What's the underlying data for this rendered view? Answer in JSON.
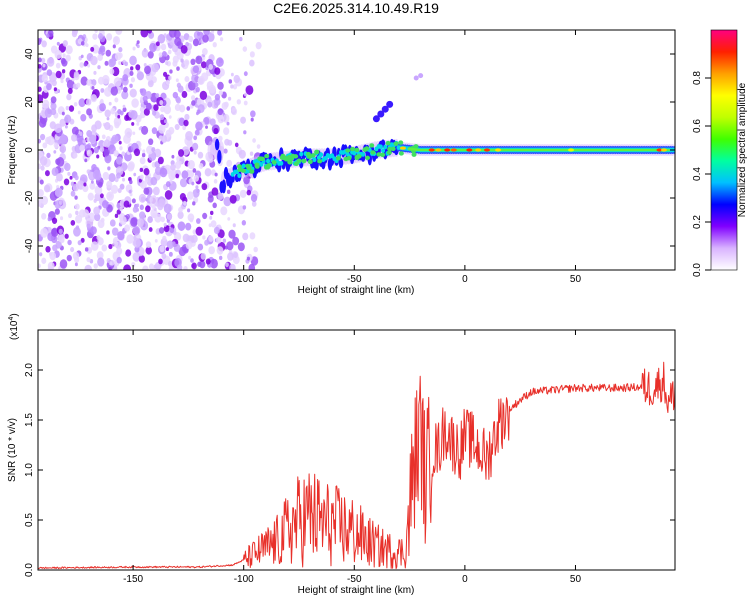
{
  "chart_data": [
    {
      "type": "heatmap",
      "title": "C2E6.2025.314.10.49.R19",
      "xlabel": "Height of straight line (km)",
      "ylabel": "Frequency (Hz)",
      "xlim": [
        -193,
        95
      ],
      "ylim": [
        -50,
        50
      ],
      "xticks": [
        -150,
        -100,
        -50,
        0,
        50
      ],
      "xtick_labels": [
        "-150",
        "-100",
        "-50",
        "0",
        "50"
      ],
      "yticks": [
        -40,
        -20,
        0,
        20,
        40
      ],
      "ytick_labels": [
        "-40",
        "-20",
        "0",
        "20",
        "40"
      ],
      "colorbar": {
        "label": "Normalized spectral amplitude",
        "range": [
          0.0,
          1.0
        ],
        "ticks": [
          0.0,
          0.2,
          0.4,
          0.6,
          0.8
        ],
        "tick_labels": [
          "0.0",
          "0.2",
          "0.4",
          "0.6",
          "0.8"
        ],
        "colors": [
          "#ffffff",
          "#d9b3ff",
          "#8000ff",
          "#0000ff",
          "#00c0ff",
          "#00ffa0",
          "#40ff00",
          "#c0ff00",
          "#ffff00",
          "#ffa000",
          "#ff2000",
          "#ff0080"
        ]
      },
      "signal_track": [
        {
          "x": -110,
          "y": -13
        },
        {
          "x": -100,
          "y": -8
        },
        {
          "x": -90,
          "y": -5
        },
        {
          "x": -80,
          "y": -4
        },
        {
          "x": -70,
          "y": -3
        },
        {
          "x": -60,
          "y": -3
        },
        {
          "x": -50,
          "y": -2
        },
        {
          "x": -40,
          "y": 0
        },
        {
          "x": -30,
          "y": 1
        },
        {
          "x": -20,
          "y": 0
        },
        {
          "x": 0,
          "y": 0
        },
        {
          "x": 50,
          "y": 0
        },
        {
          "x": 95,
          "y": 0
        }
      ],
      "noise_region_x": [
        -193,
        -105
      ],
      "accent_color": "#7b00e0"
    },
    {
      "type": "line",
      "xlabel": "Height of straight line (km)",
      "ylabel": "SNR (10 * v/v)",
      "y_multiplier": "(x10",
      "y_multiplier_exp": "4",
      "y_multiplier_close": ")",
      "xlim": [
        -193,
        95
      ],
      "ylim": [
        0,
        2.4
      ],
      "xticks": [
        -150,
        -100,
        -50,
        0,
        50
      ],
      "xtick_labels": [
        "-150",
        "-100",
        "-50",
        "0",
        "50"
      ],
      "yticks": [
        0.0,
        0.5,
        1.0,
        1.5,
        2.0
      ],
      "ytick_labels": [
        "0.0",
        "0.5",
        "1.0",
        "1.5",
        "2.0"
      ],
      "series": [
        {
          "name": "SNR",
          "color": "#e8302a",
          "x": [
            -193,
            -150,
            -120,
            -105,
            -100,
            -95,
            -90,
            -85,
            -80,
            -75,
            -70,
            -65,
            -60,
            -55,
            -50,
            -45,
            -40,
            -35,
            -30,
            -27,
            -25,
            -23,
            -20,
            -18,
            -15,
            -12,
            -10,
            -8,
            -5,
            -2,
            0,
            5,
            10,
            15,
            20,
            25,
            30,
            40,
            50,
            60,
            70,
            80,
            85,
            90,
            92,
            95
          ],
          "y": [
            0.02,
            0.03,
            0.03,
            0.05,
            0.1,
            0.16,
            0.22,
            0.28,
            0.4,
            0.5,
            0.55,
            0.48,
            0.45,
            0.42,
            0.38,
            0.3,
            0.24,
            0.2,
            0.18,
            0.18,
            0.55,
            1.05,
            1.4,
            0.9,
            1.2,
            1.2,
            1.35,
            1.4,
            1.25,
            1.2,
            1.35,
            1.25,
            1.1,
            1.45,
            1.6,
            1.7,
            1.78,
            1.8,
            1.82,
            1.82,
            1.82,
            1.83,
            1.82,
            1.9,
            1.65,
            1.8
          ]
        }
      ]
    }
  ]
}
